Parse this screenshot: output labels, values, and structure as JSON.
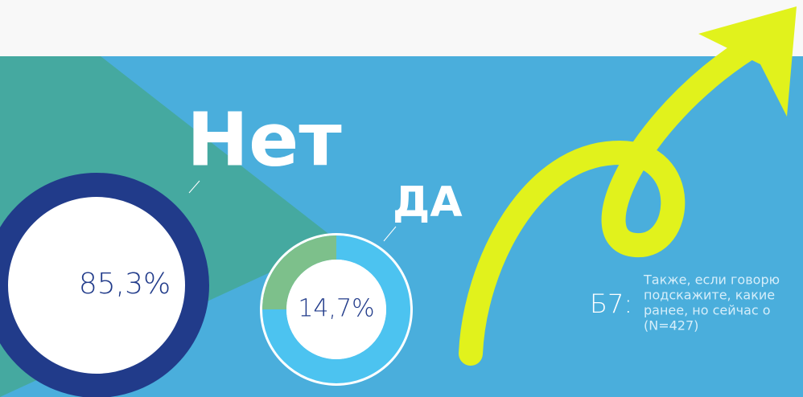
{
  "answers": [
    {
      "label": "Нет",
      "value": "85,3%"
    },
    {
      "label": "ДА",
      "value": "14,7%"
    }
  ],
  "question": {
    "code": "Б7:",
    "lines": [
      "Также, если говорю",
      "подскажите, какие",
      "ранее, но сейчас о",
      "(N=427)"
    ]
  }
}
